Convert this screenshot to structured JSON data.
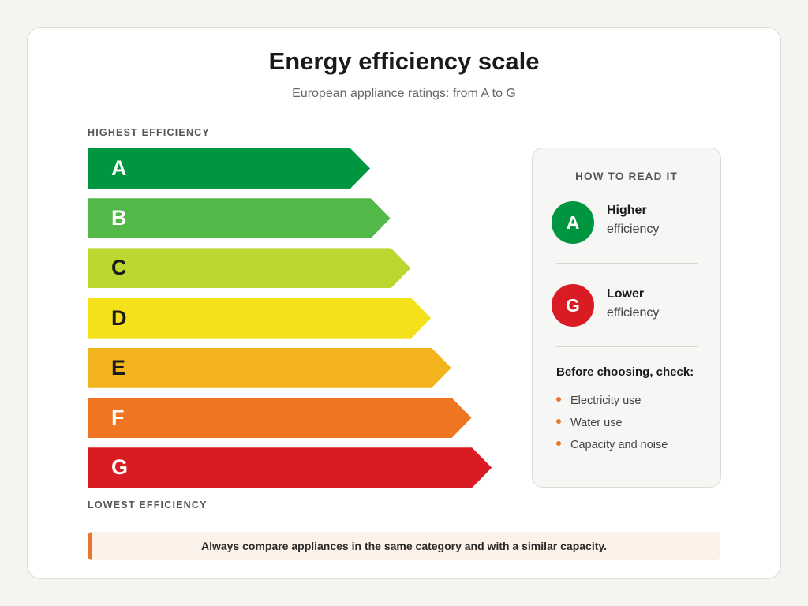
{
  "header": {
    "title": "Energy efficiency scale",
    "subtitle": "European appliance ratings: from A to G"
  },
  "scale": {
    "top_label": "HIGHEST EFFICIENCY",
    "bottom_label": "LOWEST EFFICIENCY",
    "classes": [
      {
        "letter": "A",
        "color": "#00963f",
        "text_color": "#ffffff"
      },
      {
        "letter": "B",
        "color": "#52b848",
        "text_color": "#ffffff"
      },
      {
        "letter": "C",
        "color": "#bdd630",
        "text_color": "#1a1a1a"
      },
      {
        "letter": "D",
        "color": "#f4e01b",
        "text_color": "#1a1a1a"
      },
      {
        "letter": "E",
        "color": "#f3b41e",
        "text_color": "#1a1a1a"
      },
      {
        "letter": "F",
        "color": "#ee7623",
        "text_color": "#ffffff"
      },
      {
        "letter": "G",
        "color": "#d91c24",
        "text_color": "#ffffff"
      }
    ]
  },
  "legend": {
    "title": "HOW TO READ IT",
    "items": [
      {
        "badge": "A",
        "color": "#00963f",
        "strong": "Higher",
        "sub": "efficiency"
      },
      {
        "badge": "G",
        "color": "#d91c24",
        "strong": "Lower",
        "sub": "efficiency"
      }
    ],
    "check_title": "Before choosing, check:",
    "checks": [
      "Electricity use",
      "Water use",
      "Capacity and noise"
    ],
    "bullet_color": "#e8762b"
  },
  "note": {
    "text": "Always compare appliances in the same category and with a similar capacity.",
    "accent_color": "#e8762b"
  }
}
